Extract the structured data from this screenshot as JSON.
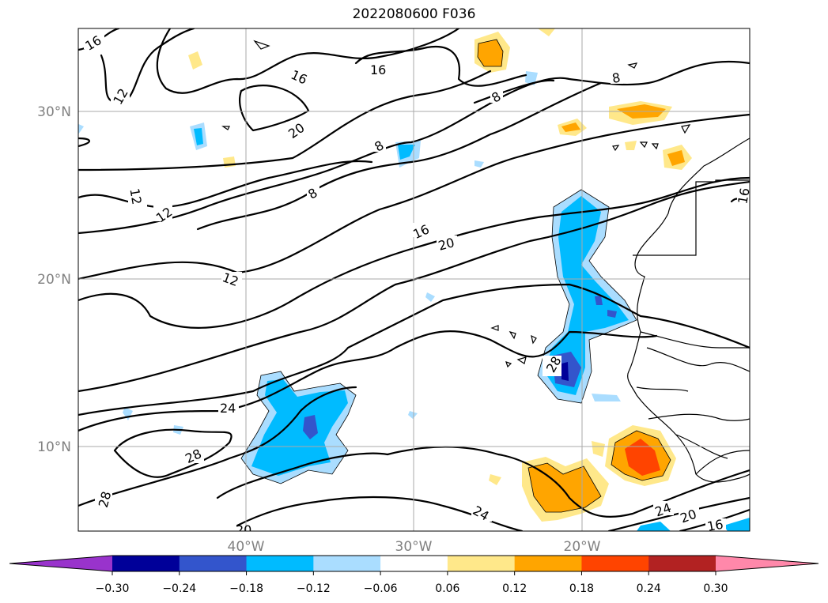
{
  "title": "2022080600 F036",
  "map": {
    "lat_labels": [
      "30°N",
      "20°N",
      "10°N"
    ],
    "lon_labels": [
      "40°W",
      "30°W",
      "20°W"
    ],
    "contour_levels_labeled": [
      "8",
      "12",
      "16",
      "20",
      "24",
      "28"
    ],
    "contour_label_text": [
      "16",
      "12",
      "16",
      "16",
      "20",
      "8",
      "8",
      "8",
      "12",
      "12",
      "8",
      "16",
      "20",
      "12",
      "24",
      "28",
      "28",
      "28",
      "24",
      "24",
      "20",
      "16",
      "16",
      "20"
    ]
  },
  "colorbar": {
    "tick_labels": [
      "−0.30",
      "−0.24",
      "−0.18",
      "−0.12",
      "−0.06",
      "0.06",
      "0.12",
      "0.18",
      "0.24",
      "0.30"
    ],
    "colors": [
      "#9933cc",
      "#000099",
      "#3355cc",
      "#00bbff",
      "#aaddff",
      "#ffffff",
      "#ffe88a",
      "#ffa500",
      "#ff4400",
      "#b22222",
      "#ff88aa"
    ]
  }
}
